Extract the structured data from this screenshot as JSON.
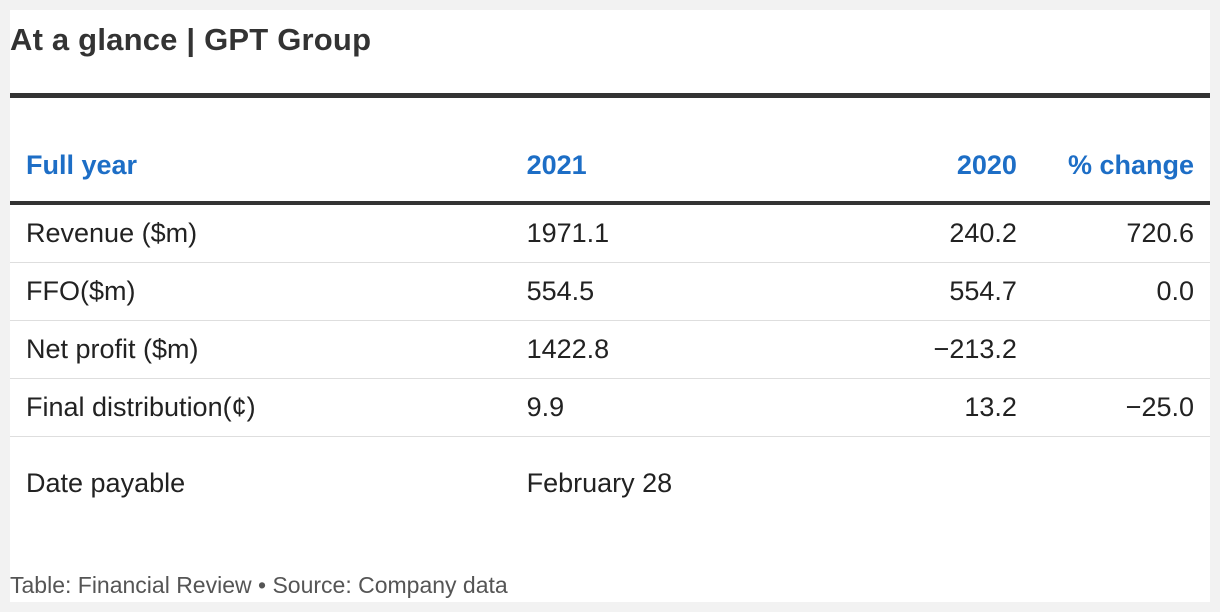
{
  "title": "At a glance | GPT Group",
  "chart_data": {
    "type": "table",
    "title": "At a glance | GPT Group",
    "columns": [
      "Full year",
      "2021",
      "2020",
      "% change"
    ],
    "rows": [
      {
        "label": "Revenue ($m)",
        "y2021": "1971.1",
        "y2020": "240.2",
        "change": "720.6"
      },
      {
        "label": "FFO($m)",
        "y2021": "554.5",
        "y2020": "554.7",
        "change": "0.0"
      },
      {
        "label": "Net profit ($m)",
        "y2021": "1422.8",
        "y2020": "−213.2",
        "change": ""
      },
      {
        "label": "Final distribution(¢)",
        "y2021": "9.9",
        "y2020": "13.2",
        "change": "−25.0"
      },
      {
        "label": "Date payable",
        "y2021": "February 28",
        "y2020": "",
        "change": ""
      }
    ]
  },
  "footer": "Table: Financial Review • Source: Company data",
  "colors": {
    "header": "#1d6ec6",
    "rule": "#333333"
  }
}
